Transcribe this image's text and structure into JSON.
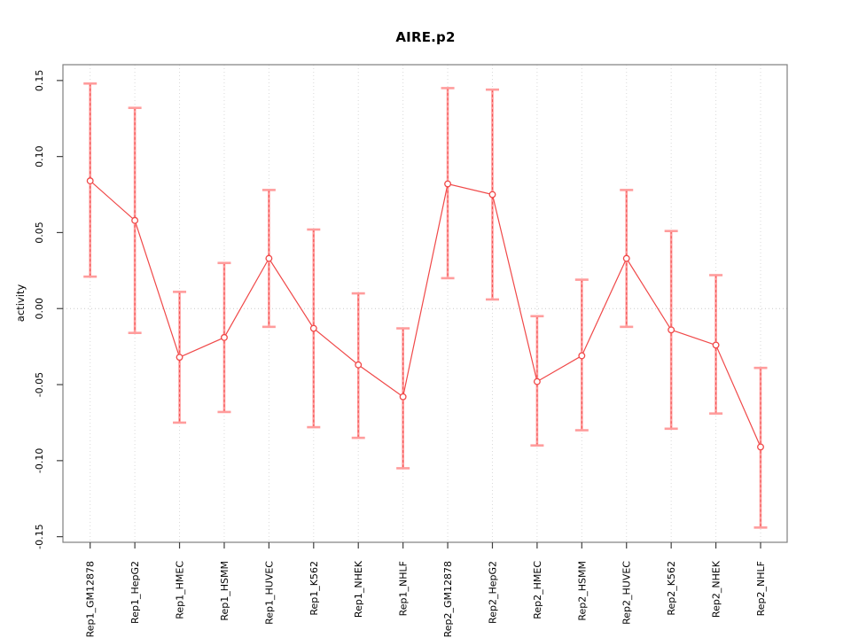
{
  "title": "AIRE.p2",
  "chart_data": {
    "type": "scatter",
    "subtype": "points-with-error-bars-connected-by-line",
    "title": "AIRE.p2",
    "xlabel": "",
    "ylabel": "activity",
    "legend": "none",
    "grid": "vertical dotted gridline at each category; dotted horizontal line at y=0",
    "ylim": [
      -0.1537,
      0.1604
    ],
    "yticks": [
      0.15,
      0.1,
      0.05,
      0.0,
      -0.05,
      -0.1,
      -0.15
    ],
    "ytick_labels": [
      "0.15",
      "0.10",
      "0.05",
      "0.00",
      "-0.05",
      "-0.10",
      "-0.15"
    ],
    "categories": [
      "Rep1_GM12878",
      "Rep1_HepG2",
      "Rep1_HMEC",
      "Rep1_HSMM",
      "Rep1_HUVEC",
      "Rep1_K562",
      "Rep1_NHEK",
      "Rep1_NHLF",
      "Rep2_GM12878",
      "Rep2_HepG2",
      "Rep2_HMEC",
      "Rep2_HSMM",
      "Rep2_HUVEC",
      "Rep2_K562",
      "Rep2_NHEK",
      "Rep2_NHLF"
    ],
    "series": [
      {
        "name": "activity",
        "values": [
          0.084,
          0.058,
          -0.032,
          -0.019,
          0.033,
          -0.013,
          -0.037,
          -0.058,
          0.082,
          0.075,
          -0.048,
          -0.031,
          0.033,
          -0.014,
          -0.024,
          -0.091
        ],
        "error_upper": [
          0.148,
          0.132,
          0.011,
          0.03,
          0.078,
          0.052,
          0.01,
          -0.013,
          0.145,
          0.144,
          -0.005,
          0.019,
          0.078,
          0.051,
          0.022,
          -0.039
        ],
        "error_lower": [
          0.021,
          -0.016,
          -0.075,
          -0.068,
          -0.012,
          -0.078,
          -0.085,
          -0.105,
          0.02,
          0.006,
          -0.09,
          -0.08,
          -0.012,
          -0.079,
          -0.069,
          -0.144
        ]
      }
    ],
    "colors": {
      "point_and_line": "#f04848",
      "error_bar_pink": "#ff9c9c",
      "error_bar_dash": "#f25050",
      "gridline": "#d9d9d9",
      "zero_line": "#c9c9c9",
      "frame": "#7f7f7f",
      "tick": "#404040",
      "text": "#000000",
      "background": "#ffffff"
    }
  }
}
